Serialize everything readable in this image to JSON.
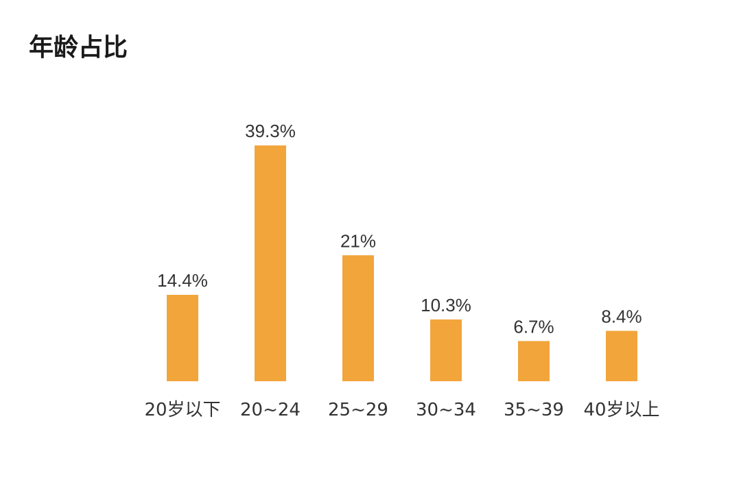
{
  "chart_data": {
    "type": "bar",
    "title": "年龄占比",
    "categories": [
      "20岁以下",
      "20~24",
      "25~29",
      "30~34",
      "35~39",
      "40岁以上"
    ],
    "values": [
      14.4,
      39.3,
      21,
      10.3,
      6.7,
      8.4
    ],
    "data_labels": [
      "14.4%",
      "39.3%",
      "21%",
      "10.3%",
      "6.7%",
      "8.4%"
    ],
    "xlabel": "",
    "ylabel": "",
    "ylim": [
      0,
      40
    ],
    "grid": false,
    "colors": {
      "bar": "#F2A53B"
    }
  }
}
